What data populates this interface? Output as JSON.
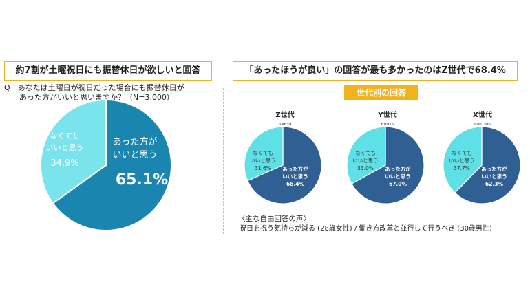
{
  "headers": {
    "left": "約7割が土曜祝日にも振替休日が欲しいと回答",
    "right": "「あったほうが良い」の回答が最も多かったのはZ世代で68.4%"
  },
  "question": {
    "line1": "Q　あなたは土曜日が祝日だった場合にも振替休日が",
    "line2": "　　あった方がいいと思いますか？（N=3,000）"
  },
  "generation_tag": "世代別の回答",
  "colors": {
    "main_yes": "#1a86b0",
    "main_no": "#7ae4ec",
    "gen_yes": "#2f5f93",
    "gen_no": "#5fe0e6",
    "accent": "#f2b21b"
  },
  "chart_data": [
    {
      "type": "pie",
      "title": "",
      "slices": [
        {
          "label_line1": "あった方が",
          "label_line2": "いいと思う",
          "value": 65.1,
          "value_text": "65.1%"
        },
        {
          "label_line1": "なくても",
          "label_line2": "いいと思う",
          "value": 34.9,
          "value_text": "34.9%"
        }
      ]
    },
    {
      "type": "pie",
      "title": "Z世代",
      "n_text": "n=639",
      "slices": [
        {
          "label_line1": "あった方が",
          "label_line2": "いいと思う",
          "value": 68.4,
          "value_text": "68.4%"
        },
        {
          "label_line1": "なくても",
          "label_line2": "いいと思う",
          "value": 31.6,
          "value_text": "31.6%"
        }
      ]
    },
    {
      "type": "pie",
      "title": "Y世代",
      "n_text": "n=975",
      "slices": [
        {
          "label_line1": "あった方が",
          "label_line2": "いいと思う",
          "value": 67.0,
          "value_text": "67.0%"
        },
        {
          "label_line1": "なくても",
          "label_line2": "いいと思う",
          "value": 33.0,
          "value_text": "33.0%"
        }
      ]
    },
    {
      "type": "pie",
      "title": "X世代",
      "n_text": "n=1,386",
      "slices": [
        {
          "label_line1": "あった方が",
          "label_line2": "いいと思う",
          "value": 62.3,
          "value_text": "62.3%"
        },
        {
          "label_line1": "なくても",
          "label_line2": "いいと思う",
          "value": 37.7,
          "value_text": "37.7%"
        }
      ]
    }
  ],
  "comments": {
    "title": "〈主な自由回答の声〉",
    "body": "祝日を祝う気持ちが減る (28歳女性) / 働き方改革と並行して行うべき (30歳男性)"
  }
}
